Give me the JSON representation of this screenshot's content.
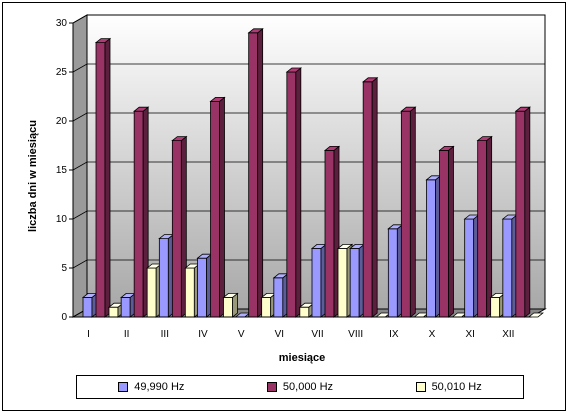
{
  "chart_data": {
    "type": "bar",
    "categories": [
      "I",
      "II",
      "III",
      "IV",
      "V",
      "VI",
      "VII",
      "VIII",
      "IX",
      "X",
      "XI",
      "XII"
    ],
    "series": [
      {
        "name": "49,990 Hz",
        "color": "#9999ff",
        "values": [
          2,
          2,
          8,
          6,
          0,
          4,
          7,
          7,
          9,
          14,
          10,
          10
        ]
      },
      {
        "name": "50,000 Hz",
        "color": "#993366",
        "values": [
          28,
          21,
          18,
          22,
          29,
          25,
          17,
          24,
          21,
          17,
          18,
          21
        ]
      },
      {
        "name": "50,010 Hz",
        "color": "#ffffcc",
        "values": [
          1,
          5,
          5,
          2,
          2,
          1,
          7,
          0,
          0,
          0,
          2,
          0
        ]
      }
    ],
    "xlabel": "miesiące",
    "ylabel": "liczba dni w miesiącu",
    "ylim": [
      0,
      30
    ],
    "yticks": [
      0,
      5,
      10,
      15,
      20,
      25,
      30
    ],
    "grid": true,
    "legend_position": "bottom"
  }
}
